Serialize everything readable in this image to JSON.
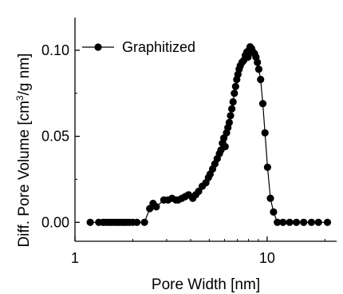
{
  "chart_data": {
    "type": "line",
    "xscale": "log",
    "xlim": [
      1,
      23
    ],
    "ylim": [
      -0.011,
      0.119
    ],
    "xticks": [
      1,
      10
    ],
    "xtick_labels": [
      "1",
      "10"
    ],
    "yticks": [
      0.0,
      0.05,
      0.1
    ],
    "ytick_labels": [
      "0.00",
      "0.05",
      "0.10"
    ],
    "xlabel": "Pore Width [nm]",
    "ylabel_main": "Diff. Pore Volume [cm",
    "ylabel_sup": "3",
    "ylabel_tail": "/g nm]",
    "grid": false,
    "legend_position": "top-left",
    "marker": "circle-filled",
    "color": "#000000",
    "series": [
      {
        "name": "Graphitized",
        "x": [
          1.2,
          1.33,
          1.4,
          1.45,
          1.5,
          1.55,
          1.6,
          1.65,
          1.7,
          1.75,
          1.8,
          1.85,
          1.92,
          2.0,
          2.1,
          2.3,
          2.45,
          2.55,
          2.65,
          2.9,
          3.05,
          3.2,
          3.35,
          3.45,
          3.6,
          3.75,
          3.9,
          4.1,
          4.25,
          4.4,
          4.6,
          4.8,
          4.95,
          5.05,
          5.2,
          5.35,
          5.5,
          5.65,
          5.75,
          5.85,
          5.95,
          6.05,
          6.15,
          6.25,
          6.35,
          6.45,
          6.55,
          6.65,
          6.75,
          6.85,
          6.95,
          7.05,
          7.15,
          7.25,
          7.4,
          7.55,
          7.7,
          7.85,
          7.95,
          8.05,
          8.15,
          8.3,
          8.45,
          8.6,
          8.75,
          8.9,
          9.05,
          9.25,
          9.5,
          9.75,
          10.05,
          10.4,
          10.8,
          11.3,
          12.1,
          13.1,
          14.2,
          15.5,
          17.0,
          18.5,
          20.6
        ],
        "y": [
          0.0,
          0.0,
          0.0,
          0.0,
          0.0,
          0.0,
          0.0,
          0.0,
          0.0,
          0.0,
          0.0,
          0.0,
          0.0,
          0.0,
          0.0,
          0.0,
          0.008,
          0.011,
          0.009,
          0.013,
          0.013,
          0.014,
          0.013,
          0.013,
          0.014,
          0.015,
          0.016,
          0.014,
          0.016,
          0.018,
          0.021,
          0.023,
          0.026,
          0.028,
          0.031,
          0.034,
          0.037,
          0.04,
          0.042,
          0.046,
          0.049,
          0.044,
          0.052,
          0.055,
          0.058,
          0.062,
          0.066,
          0.07,
          0.075,
          0.079,
          0.083,
          0.086,
          0.089,
          0.091,
          0.093,
          0.094,
          0.097,
          0.099,
          0.096,
          0.1,
          0.102,
          0.101,
          0.099,
          0.098,
          0.096,
          0.093,
          0.089,
          0.083,
          0.069,
          0.052,
          0.032,
          0.014,
          0.006,
          0.0,
          0.0,
          0.0,
          0.0,
          0.0,
          0.0,
          0.0,
          0.0
        ]
      }
    ]
  }
}
